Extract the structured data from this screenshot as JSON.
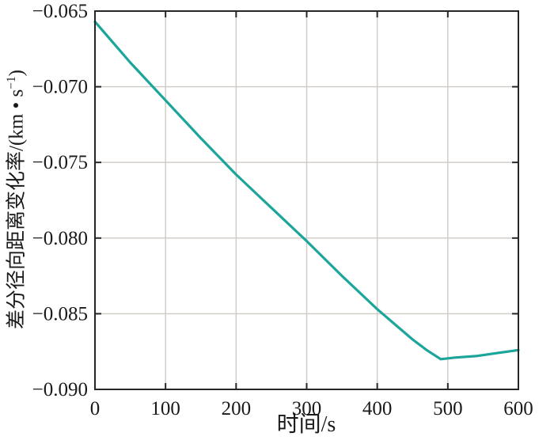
{
  "labels": {
    "xlabel": "时间/s",
    "ylabel_full": "差分径向距离变化率/(km • s⁻¹)",
    "ylabel_pre": "差分径向距离变化率/(km • s",
    "ylabel_sup": "−1",
    "ylabel_post": ")"
  },
  "chart_data": {
    "type": "line",
    "title": "",
    "xlabel": "时间/s",
    "ylabel": "差分径向距离变化率/(km · s⁻¹)",
    "xlim": [
      0,
      600
    ],
    "ylim": [
      -0.09,
      -0.065
    ],
    "grid": true,
    "legend": "none",
    "xticks": [
      0,
      100,
      200,
      300,
      400,
      500,
      600
    ],
    "xtick_labels": [
      "0",
      "100",
      "200",
      "300",
      "400",
      "500",
      "600"
    ],
    "yticks": [
      -0.065,
      -0.07,
      -0.075,
      -0.08,
      -0.085,
      -0.09
    ],
    "ytick_labels": [
      "−0.065",
      "−0.070",
      "−0.075",
      "−0.080",
      "−0.085",
      "−0.090"
    ],
    "colors": {
      "line": "#1ca59a",
      "grid": "#cfcac3",
      "axis": "#262626",
      "text": "#1a1a1a"
    },
    "series": [
      {
        "name": "差分径向距离变化率",
        "x": [
          0,
          50,
          100,
          150,
          200,
          250,
          300,
          350,
          400,
          430,
          450,
          470,
          490,
          510,
          540,
          570,
          600
        ],
        "y": [
          -0.0657,
          -0.0684,
          -0.0709,
          -0.0734,
          -0.0758,
          -0.078,
          -0.0802,
          -0.0825,
          -0.0847,
          -0.0859,
          -0.0867,
          -0.0874,
          -0.088,
          -0.0879,
          -0.0878,
          -0.0876,
          -0.0874
        ]
      }
    ]
  }
}
